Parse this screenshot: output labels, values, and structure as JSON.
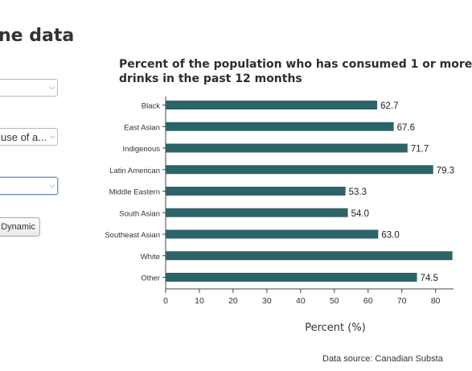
{
  "page": {
    "heading": "ne data",
    "data_source": "Data source: Canadian Substa"
  },
  "controls": {
    "select1": {
      "value": ""
    },
    "select2": {
      "value": "use of a..."
    },
    "select3": {
      "value": ""
    },
    "dynamic_button": "Dynamic"
  },
  "icons": {
    "dropdown": "chevron-down-icon"
  },
  "colors": {
    "bar": "#2d6468",
    "focus_border": "#6d8fc4"
  },
  "chart_data": {
    "type": "bar",
    "orientation": "horizontal",
    "title": "Percent of the population who has consumed 1 or more drinks in the past 12 months",
    "title_lines": [
      "Percent of the population who has consumed 1 or more",
      "drinks in the past 12 months"
    ],
    "xlabel": "Percent (%)",
    "ylabel": "",
    "categories": [
      "Black",
      "East Asian",
      "Indigenous",
      "Latin American",
      "Middle Eastern",
      "South Asian",
      "Southeast Asian",
      "White",
      "Other"
    ],
    "values": [
      62.7,
      67.6,
      71.7,
      79.3,
      53.3,
      54.0,
      63.0,
      85.0,
      74.5
    ],
    "data_labels": [
      "62.7",
      "67.6",
      "71.7",
      "79.3",
      "53.3",
      "54.0",
      "63.0",
      "",
      "74.5"
    ],
    "xticks": [
      0,
      10,
      20,
      30,
      40,
      50,
      60,
      70,
      80
    ],
    "xlim": [
      0,
      85
    ],
    "grid": false,
    "bar_color": "#2d6468"
  }
}
